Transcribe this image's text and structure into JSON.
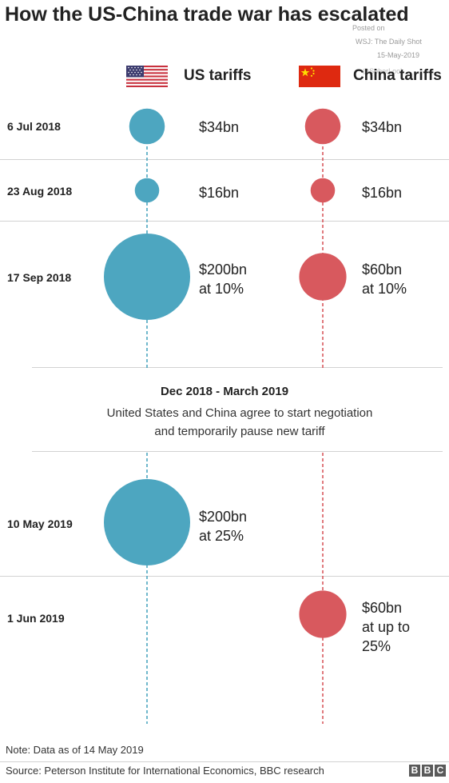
{
  "header": {
    "title": "How the US-China trade war has escalated"
  },
  "watermark": {
    "posted_on": "Posted on",
    "source": "WSJ: The Daily Shot",
    "date": "15-May-2019",
    "handle": "@SoberLook"
  },
  "columns": {
    "us_label": "US tariffs",
    "china_label": "China tariffs"
  },
  "colors": {
    "us": "#4da6c0",
    "china": "#d8595e",
    "divider": "#d2d2d2",
    "text": "#222222"
  },
  "pause": {
    "title": "Dec 2018 - March 2019",
    "line1": "United States and China agree to start negotiation",
    "line2": "and temporarily pause new tariff"
  },
  "footer": {
    "note": "Note: Data as of 14 May 2019",
    "source": "Source: Peterson Institute for International Economics, BBC research",
    "logo_letters": [
      "B",
      "B",
      "C"
    ]
  },
  "chart_data": {
    "type": "bubble-timeline",
    "title": "How the US-China trade war has escalated",
    "series": [
      {
        "name": "US tariffs",
        "color": "#4da6c0"
      },
      {
        "name": "China tariffs",
        "color": "#d8595e"
      }
    ],
    "events": [
      {
        "date": "6 Jul 2018",
        "us": {
          "value_bn": 34,
          "label_line1": "$34bn",
          "label_line2": ""
        },
        "china": {
          "value_bn": 34,
          "label_line1": "$34bn",
          "label_line2": ""
        }
      },
      {
        "date": "23 Aug 2018",
        "us": {
          "value_bn": 16,
          "label_line1": "$16bn",
          "label_line2": ""
        },
        "china": {
          "value_bn": 16,
          "label_line1": "$16bn",
          "label_line2": ""
        }
      },
      {
        "date": "17 Sep 2018",
        "us": {
          "value_bn": 200,
          "label_line1": "$200bn",
          "label_line2": "at 10%"
        },
        "china": {
          "value_bn": 60,
          "label_line1": "$60bn",
          "label_line2": "at 10%"
        }
      },
      {
        "date": "10 May 2019",
        "us": {
          "value_bn": 200,
          "label_line1": "$200bn",
          "label_line2": "at 25%"
        },
        "china": null
      },
      {
        "date": "1 Jun 2019",
        "us": null,
        "china": {
          "value_bn": 60,
          "label_line1": "$60bn",
          "label_line2": "at up to",
          "label_line3": "25%"
        }
      }
    ]
  }
}
